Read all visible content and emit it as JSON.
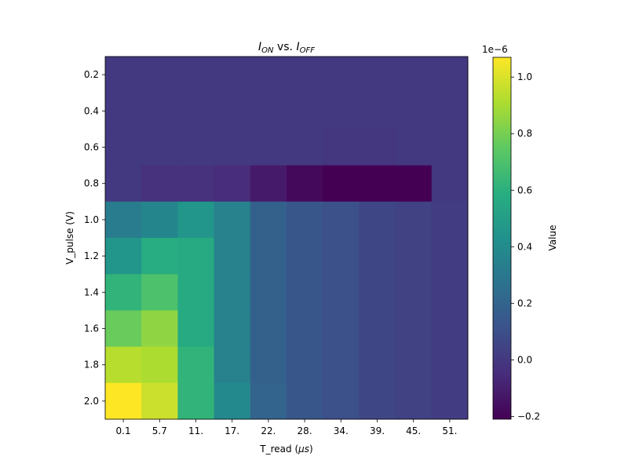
{
  "chart_data": {
    "type": "heatmap",
    "title_parts": {
      "i1": "I",
      "on": "ON",
      "vs": " vs. ",
      "i2": "I",
      "off": "OFF"
    },
    "xlabel_parts": {
      "pre": "T_read (",
      "mu": "μs",
      "post": ")"
    },
    "ylabel": "V_pulse (V)",
    "x_categories": [
      "0.1",
      "5.7",
      "11.",
      "17.",
      "22.",
      "28.",
      "34.",
      "39.",
      "45.",
      "51."
    ],
    "y_categories": [
      "0.2",
      "0.4",
      "0.6",
      "0.8",
      "1.0",
      "1.2",
      "1.4",
      "1.6",
      "1.8",
      "2.0"
    ],
    "values_e6": [
      [
        0.0,
        0.0,
        0.0,
        0.0,
        0.0,
        0.0,
        0.0,
        0.0,
        0.0,
        0.0
      ],
      [
        0.0,
        0.0,
        0.0,
        0.0,
        0.0,
        0.0,
        0.0,
        0.0,
        0.0,
        0.0
      ],
      [
        0.0,
        0.0,
        0.0,
        0.0,
        0.0,
        0.0,
        -0.01,
        -0.01,
        0.0,
        0.0
      ],
      [
        0.0,
        -0.03,
        -0.03,
        -0.05,
        -0.12,
        -0.18,
        -0.21,
        -0.21,
        -0.21,
        0.0
      ],
      [
        0.32,
        0.37,
        0.46,
        0.35,
        0.18,
        0.13,
        0.1,
        0.06,
        0.04,
        0.02
      ],
      [
        0.46,
        0.58,
        0.57,
        0.35,
        0.18,
        0.13,
        0.1,
        0.06,
        0.04,
        0.02
      ],
      [
        0.62,
        0.7,
        0.57,
        0.35,
        0.18,
        0.13,
        0.1,
        0.06,
        0.04,
        0.02
      ],
      [
        0.77,
        0.85,
        0.57,
        0.35,
        0.18,
        0.13,
        0.1,
        0.06,
        0.04,
        0.02
      ],
      [
        0.93,
        0.91,
        0.62,
        0.35,
        0.18,
        0.13,
        0.1,
        0.06,
        0.04,
        0.02
      ],
      [
        1.07,
        0.97,
        0.62,
        0.39,
        0.2,
        0.13,
        0.1,
        0.06,
        0.04,
        0.02
      ]
    ],
    "value_range_e6": [
      -0.21,
      1.07
    ],
    "colormap": "viridis",
    "colorbar": {
      "label": "Value",
      "offset_text": "1e−6",
      "ticks": [
        -0.2,
        0.0,
        0.2,
        0.4,
        0.6,
        0.8,
        1.0
      ],
      "tick_labels": [
        "−0.2",
        "0.0",
        "0.2",
        "0.4",
        "0.6",
        "0.8",
        "1.0"
      ]
    }
  }
}
